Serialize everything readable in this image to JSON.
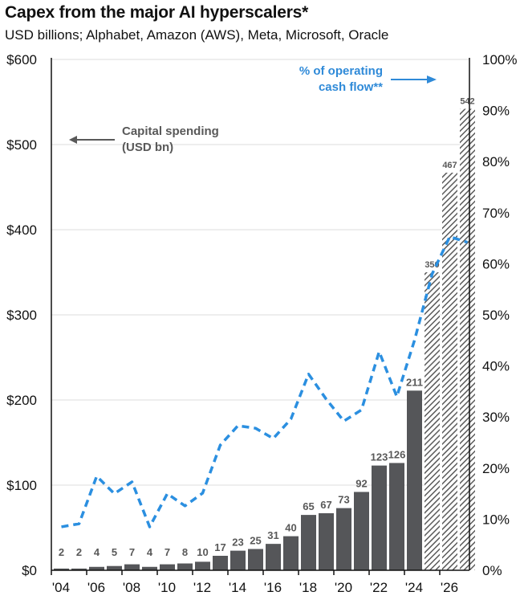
{
  "header": {
    "title": "Capex from the major AI hyperscalers*",
    "subtitle": "USD billions; Alphabet, Amazon (AWS), Meta, Microsoft, Oracle"
  },
  "colors": {
    "bar": "#555659",
    "hatch": "#5a5a5a",
    "line": "#2b8fe0",
    "gridline": "#dcdcdc",
    "axis": "#111111",
    "annotation_gray": "#595959",
    "annotation_blue": "#2f8ad8"
  },
  "chart_data": {
    "type": "bar",
    "title": "Capex from the major AI hyperscalers*",
    "subtitle": "USD billions; Alphabet, Amazon (AWS), Meta, Microsoft, Oracle",
    "xlabel": "",
    "ylabel": "",
    "categories": [
      "2004",
      "2005",
      "2006",
      "2007",
      "2008",
      "2009",
      "2010",
      "2011",
      "2012",
      "2013",
      "2014",
      "2015",
      "2016",
      "2017",
      "2018",
      "2019",
      "2020",
      "2021",
      "2022",
      "2023",
      "2024",
      "2025",
      "2026",
      "2027"
    ],
    "x_tick_labels": [
      "'04",
      "'06",
      "'08",
      "'10",
      "'12",
      "'14",
      "'16",
      "'18",
      "'20",
      "'22",
      "'24",
      "'26"
    ],
    "y_left": {
      "ylim": [
        0,
        600
      ],
      "ticks": [
        0,
        100,
        200,
        300,
        400,
        500,
        600
      ],
      "tick_labels": [
        "$0",
        "$100",
        "$200",
        "$300",
        "$400",
        "$500",
        "$600"
      ]
    },
    "y_right": {
      "ylim": [
        0,
        100
      ],
      "ticks": [
        0,
        10,
        20,
        30,
        40,
        50,
        60,
        70,
        80,
        90,
        100
      ],
      "tick_labels": [
        "0%",
        "10%",
        "20%",
        "30%",
        "40%",
        "50%",
        "60%",
        "70%",
        "80%",
        "90%",
        "100%"
      ]
    },
    "grid": true,
    "series": [
      {
        "name": "Capital spending (USD bn)",
        "type": "bar",
        "axis": "left",
        "values": [
          2,
          2,
          4,
          5,
          7,
          4,
          7,
          8,
          10,
          17,
          23,
          25,
          31,
          40,
          65,
          67,
          73,
          92,
          123,
          126,
          211,
          350,
          467,
          542
        ],
        "labels": [
          "2",
          "2",
          "4",
          "5",
          "7",
          "4",
          "7",
          "8",
          "10",
          "17",
          "23",
          "25",
          "31",
          "40",
          "65",
          "67",
          "73",
          "92",
          "123",
          "126",
          "211",
          "350",
          "467",
          "542"
        ],
        "estimate_from_index": 21
      },
      {
        "name": "% of operating cash flow**",
        "type": "line",
        "style": "dashed",
        "axis": "right",
        "values": [
          8.5,
          9.1,
          18.4,
          15.0,
          17.3,
          8.5,
          15.0,
          12.6,
          15.1,
          24.5,
          28.3,
          27.8,
          25.8,
          29.6,
          38.4,
          33.5,
          29.2,
          31.4,
          42.8,
          34.0,
          45.0,
          58.0,
          65.3,
          64.2
        ]
      }
    ],
    "annotations": [
      {
        "text_lines": [
          "Capital spending",
          "(USD bn)"
        ],
        "arrow": "left",
        "placement": "upper-left"
      },
      {
        "text_lines": [
          "% of operating",
          "cash flow**"
        ],
        "arrow": "right",
        "placement": "top-right"
      }
    ],
    "legend": "none"
  }
}
